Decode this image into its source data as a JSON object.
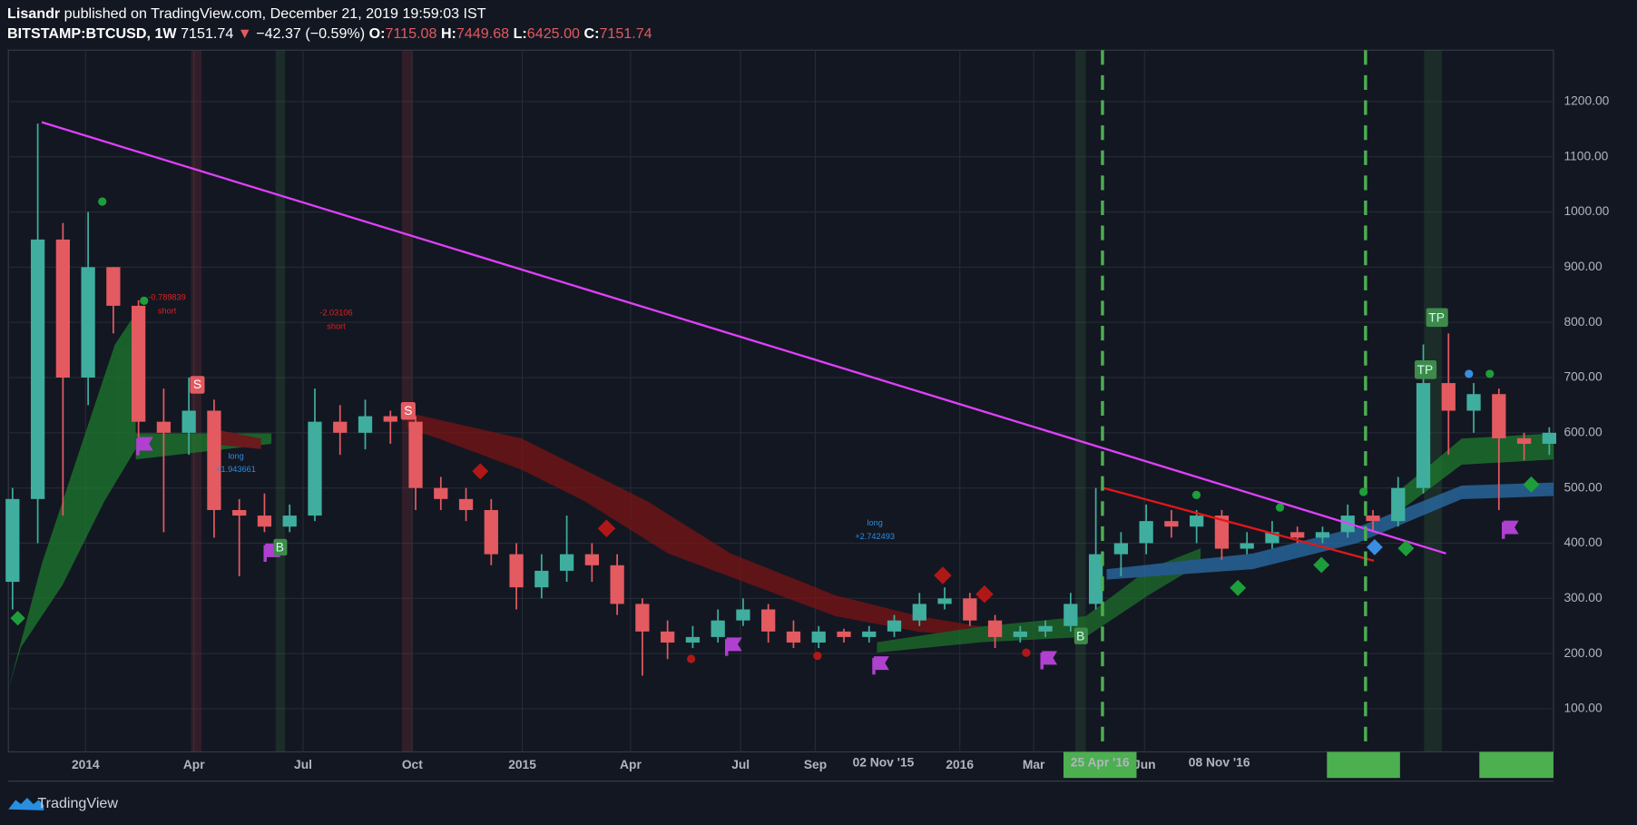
{
  "header": {
    "author": "Lisandr",
    "published": "published on TradingView.com, December 21, 2019 19:59:03 IST",
    "symbol": "BITSTAMP:BTCUSD, 1W",
    "last": "7151.74",
    "arrow": "▼",
    "change": "−42.37 (−0.59%)",
    "open_label": "O:",
    "open": "7115.08",
    "high_label": "H:",
    "high": "7449.68",
    "low_label": "L:",
    "low": "6425.00",
    "close_label": "C:",
    "close": "7151.74"
  },
  "footer": {
    "brand": "TradingView"
  },
  "annotations": [
    {
      "text": "-0.789839",
      "sub": "short"
    },
    {
      "text": "-2.03106",
      "sub": "short"
    },
    {
      "text": "long",
      "sub": "+1.943661"
    },
    {
      "text": "long",
      "sub": "+2.742493"
    }
  ],
  "signals": [
    "S",
    "S",
    "B",
    "B",
    "TP",
    "TP"
  ],
  "chart_data": {
    "type": "candlestick",
    "up_color": "#3fae9e",
    "down_color": "#e35a60",
    "grid": true,
    "x": [
      0,
      3,
      6,
      9,
      12,
      15,
      18,
      21,
      24,
      27,
      30,
      33,
      36,
      39,
      42,
      45,
      48,
      51,
      54,
      57,
      60,
      63,
      66,
      69,
      72,
      75,
      78,
      81,
      84,
      87,
      90,
      93,
      96,
      99,
      102,
      105,
      108,
      111,
      114,
      117,
      120,
      123,
      126,
      129,
      132,
      135,
      138,
      141,
      144,
      147,
      150,
      153,
      156,
      159,
      162,
      165,
      168,
      171,
      174,
      177,
      180,
      183
    ],
    "open": [
      330,
      480,
      950,
      700,
      900,
      830,
      620,
      600,
      640,
      460,
      450,
      430,
      450,
      620,
      600,
      630,
      620,
      500,
      480,
      460,
      380,
      320,
      350,
      380,
      360,
      290,
      240,
      220,
      230,
      260,
      280,
      240,
      220,
      240,
      230,
      240,
      260,
      290,
      300,
      260,
      230,
      240,
      250,
      290,
      380,
      400,
      440,
      430,
      450,
      390,
      400,
      420,
      410,
      420,
      450,
      440,
      500,
      690,
      640,
      670,
      590,
      580
    ],
    "high": [
      500,
      1160,
      980,
      1000,
      900,
      840,
      680,
      700,
      660,
      480,
      490,
      470,
      680,
      650,
      660,
      640,
      630,
      520,
      500,
      480,
      400,
      380,
      450,
      400,
      380,
      300,
      260,
      250,
      280,
      300,
      290,
      260,
      250,
      245,
      250,
      270,
      310,
      320,
      310,
      270,
      250,
      260,
      310,
      500,
      420,
      470,
      460,
      460,
      460,
      420,
      440,
      430,
      430,
      470,
      460,
      520,
      760,
      780,
      690,
      680,
      600,
      610
    ],
    "low": [
      280,
      400,
      450,
      650,
      780,
      560,
      420,
      560,
      410,
      340,
      420,
      420,
      440,
      560,
      570,
      580,
      460,
      460,
      440,
      360,
      280,
      300,
      330,
      330,
      270,
      160,
      190,
      210,
      220,
      250,
      220,
      210,
      210,
      220,
      220,
      230,
      250,
      280,
      250,
      210,
      220,
      230,
      240,
      280,
      340,
      380,
      410,
      400,
      370,
      380,
      390,
      400,
      400,
      410,
      420,
      430,
      490,
      560,
      600,
      460,
      550,
      560
    ],
    "close": [
      480,
      950,
      700,
      900,
      830,
      620,
      600,
      640,
      460,
      450,
      430,
      450,
      620,
      600,
      630,
      620,
      500,
      480,
      460,
      380,
      320,
      350,
      380,
      360,
      290,
      240,
      220,
      230,
      260,
      280,
      240,
      220,
      240,
      230,
      240,
      260,
      290,
      300,
      260,
      230,
      240,
      250,
      290,
      380,
      400,
      440,
      430,
      450,
      390,
      400,
      420,
      410,
      420,
      450,
      440,
      500,
      690,
      640,
      670,
      590,
      580,
      600
    ],
    "xlim": [
      -0.5,
      183.5
    ],
    "ylim": [
      22,
      1293
    ],
    "yticks": [
      {
        "value": 100,
        "label": "100.00"
      },
      {
        "value": 200,
        "label": "200.00"
      },
      {
        "value": 300,
        "label": "300.00"
      },
      {
        "value": 400,
        "label": "400.00"
      },
      {
        "value": 500,
        "label": "500.00"
      },
      {
        "value": 600,
        "label": "600.00"
      },
      {
        "value": 700,
        "label": "700.00"
      },
      {
        "value": 800,
        "label": "800.00"
      },
      {
        "value": 900,
        "label": "900.00"
      },
      {
        "value": 1000,
        "label": "1000.00"
      },
      {
        "value": 1100,
        "label": "1100.00"
      },
      {
        "value": 1200,
        "label": "1200.00"
      }
    ],
    "xticks": [
      {
        "value": 8.7,
        "label": "2014"
      },
      {
        "value": 21.6,
        "label": "Apr"
      },
      {
        "value": 34.6,
        "label": "Jul"
      },
      {
        "value": 47.6,
        "label": "Oct"
      },
      {
        "value": 60.7,
        "label": "2015"
      },
      {
        "value": 73.6,
        "label": "Apr"
      },
      {
        "value": 86.7,
        "label": "Jul"
      },
      {
        "value": 95.6,
        "label": "Sep"
      },
      {
        "value": 112.8,
        "label": "2016"
      },
      {
        "value": 121.6,
        "label": "Mar"
      },
      {
        "value": 134.8,
        "label": "Jun"
      }
    ],
    "date_markers": [
      {
        "value": 103.7,
        "label": "02 Nov '15"
      },
      {
        "value": 129.5,
        "label": "25 Apr '16"
      },
      {
        "value": 143.7,
        "label": "08 Nov '16"
      }
    ]
  }
}
